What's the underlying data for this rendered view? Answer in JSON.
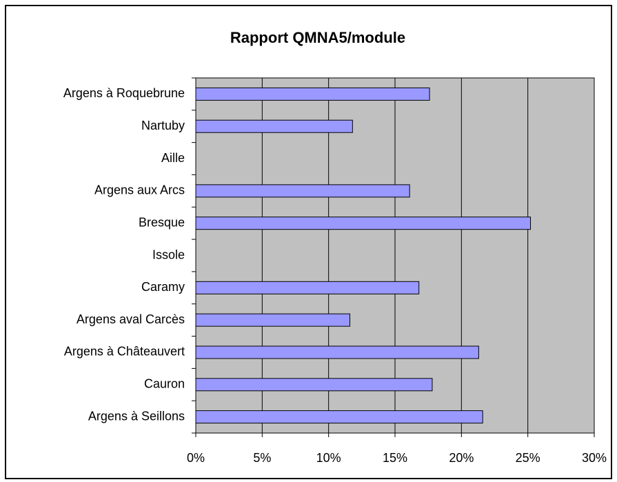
{
  "chart_data": {
    "type": "bar",
    "orientation": "horizontal",
    "title": "Rapport QMNA5/module",
    "categories": [
      "Argens à Roquebrune",
      "Nartuby",
      "Aille",
      "Argens aux Arcs",
      "Bresque",
      "Issole",
      "Caramy",
      "Argens aval Carcès",
      "Argens à Châteauvert",
      "Cauron",
      "Argens à Seillons"
    ],
    "values": [
      17.6,
      11.8,
      null,
      16.1,
      25.2,
      null,
      16.8,
      11.6,
      21.3,
      17.8,
      21.6
    ],
    "color": "#9999ff",
    "xlim": [
      0,
      30
    ],
    "xticks": [
      {
        "value": 0,
        "label": "0%"
      },
      {
        "value": 5,
        "label": "5%"
      },
      {
        "value": 10,
        "label": "10%"
      },
      {
        "value": 15,
        "label": "15%"
      },
      {
        "value": 20,
        "label": "20%"
      },
      {
        "value": 25,
        "label": "25%"
      },
      {
        "value": 30,
        "label": "30%"
      }
    ],
    "grid": true
  }
}
